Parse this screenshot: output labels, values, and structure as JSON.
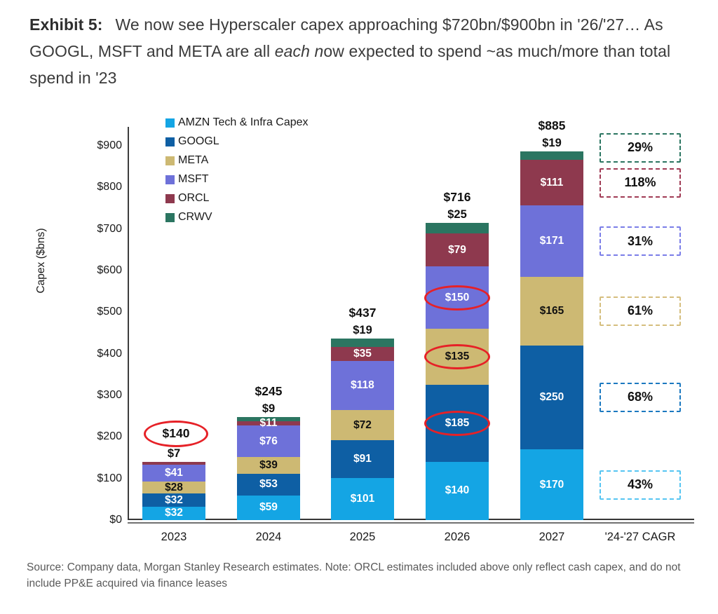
{
  "header": {
    "exhibit_label": "Exhibit 5:",
    "title_part1": "We now see Hyperscaler capex approaching $720bn/$900bn in '26/'27… As GOOGL, MSFT and META are all ",
    "title_italic": "each n",
    "title_part2": "ow expected to spend ~as much/more than total spend in '23"
  },
  "footer": {
    "source": "Source: Company data, Morgan Stanley Research estimates. Note: ORCL estimates included above only reflect cash capex, and do not include PP&E acquired via finance leases"
  },
  "chart_data": {
    "type": "bar",
    "stacked": true,
    "title": "We now see Hyperscaler capex approaching $720bn/$900bn in '26/'27… As GOOGL, MSFT and META are all each now expected to spend ~as much/more than total spend in '23",
    "ylabel": "Capex ($bns)",
    "ylim": [
      0,
      942
    ],
    "grid": false,
    "legend_position": "top-left-inside",
    "yticks": [
      {
        "label": "$0",
        "value": 0
      },
      {
        "label": "$100",
        "value": 100
      },
      {
        "label": "$200",
        "value": 200
      },
      {
        "label": "$300",
        "value": 300
      },
      {
        "label": "$400",
        "value": 400
      },
      {
        "label": "$500",
        "value": 500
      },
      {
        "label": "$600",
        "value": 600
      },
      {
        "label": "$700",
        "value": 700
      },
      {
        "label": "$800",
        "value": 800
      },
      {
        "label": "$900",
        "value": 900
      }
    ],
    "categories": [
      "2023",
      "2024",
      "2025",
      "2026",
      "2027"
    ],
    "cagr_column_label": "'24-'27 CAGR",
    "series": [
      {
        "key": "AMZN",
        "name": "AMZN Tech & Infra Capex",
        "color": "#14A5E4",
        "label_color": "#ffffff",
        "values": [
          32,
          59,
          101,
          140,
          170
        ],
        "cagr": "43%",
        "cagr_border": "#56C5F2"
      },
      {
        "key": "GOOGL",
        "name": "GOOGL",
        "color": "#0E5FA4",
        "label_color": "#ffffff",
        "values": [
          32,
          53,
          91,
          185,
          250
        ],
        "cagr": "68%",
        "cagr_border": "#1C79C0"
      },
      {
        "key": "META",
        "name": "META",
        "color": "#CDB973",
        "label_color": "#111111",
        "values": [
          28,
          39,
          72,
          135,
          165
        ],
        "cagr": "61%",
        "cagr_border": "#D5BE7E"
      },
      {
        "key": "MSFT",
        "name": "MSFT",
        "color": "#6E71D9",
        "label_color": "#ffffff",
        "values": [
          41,
          76,
          118,
          150,
          171
        ],
        "cagr": "31%",
        "cagr_border": "#7B7EE8"
      },
      {
        "key": "ORCL",
        "name": "ORCL",
        "color": "#8E394E",
        "label_color": "#ffffff",
        "values": [
          7,
          11,
          35,
          79,
          111
        ],
        "cagr": "118%",
        "cagr_border": "#A03B55"
      },
      {
        "key": "CRWV",
        "name": "CRWV",
        "color": "#2B7561",
        "label_color": "#ffffff",
        "values": [
          0,
          9,
          19,
          25,
          19
        ],
        "cagr": "29%",
        "cagr_border": "#2B7561"
      }
    ],
    "totals": [
      "$140",
      "$245",
      "$437",
      "$716",
      "$885"
    ],
    "outside_segment_labels": [
      {
        "year": "2023",
        "series": "ORCL",
        "label": "$7"
      },
      {
        "year": "2024",
        "series": "CRWV",
        "label": "$9"
      },
      {
        "year": "2025",
        "series": "CRWV",
        "label": "$19"
      },
      {
        "year": "2026",
        "series": "CRWV",
        "label": "$25"
      },
      {
        "year": "2027",
        "series": "CRWV",
        "label": "$19"
      }
    ],
    "red_circle_annotations": [
      {
        "target": "total",
        "year": "2023"
      },
      {
        "target": "segment",
        "year": "2026",
        "series": "GOOGL"
      },
      {
        "target": "segment",
        "year": "2026",
        "series": "META"
      },
      {
        "target": "segment",
        "year": "2026",
        "series": "MSFT"
      }
    ],
    "annotation_color": "#E62127"
  }
}
